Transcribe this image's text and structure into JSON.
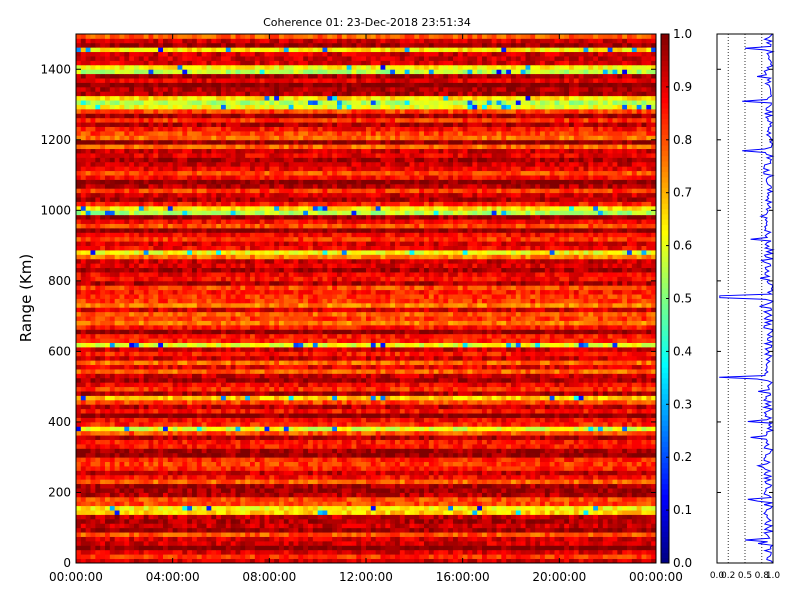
{
  "chart_data": [
    {
      "type": "heatmap",
      "title": "Coherence 01: 23-Dec-2018 23:51:34",
      "ylabel": "Range (Km)",
      "xlim_labels": [
        "00:00:00",
        "00:00:00"
      ],
      "x_tick_labels": [
        "00:00:00",
        "04:00:00",
        "08:00:00",
        "12:00:00",
        "16:00:00",
        "20:00:00",
        "00:00:00"
      ],
      "ylim": [
        0,
        1500
      ],
      "y_ticks": [
        0,
        200,
        400,
        600,
        800,
        1000,
        1200,
        1400
      ],
      "colorbar": {
        "range": [
          0.0,
          1.0
        ],
        "tick_labels": [
          "0.0",
          "0.1",
          "0.2",
          "0.3",
          "0.4",
          "0.5",
          "0.6",
          "0.7",
          "0.8",
          "0.9",
          "1.0"
        ],
        "colormap": "jet"
      },
      "typical_value_range": [
        0.75,
        1.0
      ],
      "low_coherence_bands_km": [
        150,
        380,
        470,
        620,
        880,
        1000,
        1300,
        1320,
        1400,
        1460
      ]
    },
    {
      "type": "line",
      "xlim": [
        0.0,
        1.0
      ],
      "x_tick_labels": [
        "0.0",
        "0.2",
        "0.5",
        "0.8",
        "1.0"
      ],
      "ylim": [
        0,
        1500
      ],
      "grid": "vertical dotted",
      "line_color": "#0000ff",
      "typical_value_range": [
        0.8,
        1.0
      ],
      "dips": [
        {
          "range_km": 755,
          "value": 0.05
        },
        {
          "range_km": 525,
          "value": 0.04
        },
        {
          "range_km": 1170,
          "value": 0.45
        },
        {
          "range_km": 1460,
          "value": 0.5
        },
        {
          "range_km": 180,
          "value": 0.55
        },
        {
          "range_km": 65,
          "value": 0.5
        },
        {
          "range_km": 400,
          "value": 0.55
        },
        {
          "range_km": 1310,
          "value": 0.45
        },
        {
          "range_km": 920,
          "value": 0.6
        },
        {
          "range_km": 355,
          "value": 0.6
        }
      ]
    }
  ]
}
